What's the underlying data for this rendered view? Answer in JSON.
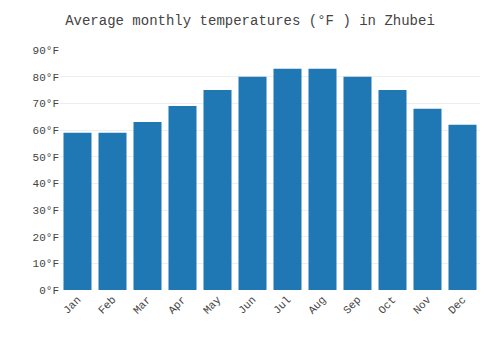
{
  "chart_data": {
    "type": "bar",
    "title": "Average monthly temperatures (°F ) in Zhubei",
    "categories": [
      "Jan",
      "Feb",
      "Mar",
      "Apr",
      "May",
      "Jun",
      "Jul",
      "Aug",
      "Sep",
      "Oct",
      "Nov",
      "Dec"
    ],
    "values": [
      59,
      59,
      63,
      69,
      75,
      80,
      83,
      83,
      80,
      75,
      68,
      62
    ],
    "ylim": [
      0,
      90
    ],
    "yticks": [
      {
        "value": 0,
        "label": "0°F"
      },
      {
        "value": 10,
        "label": "10°F"
      },
      {
        "value": 20,
        "label": "20°F"
      },
      {
        "value": 30,
        "label": "30°F"
      },
      {
        "value": 40,
        "label": "40°F"
      },
      {
        "value": 50,
        "label": "50°F"
      },
      {
        "value": 60,
        "label": "60°F"
      },
      {
        "value": 70,
        "label": "70°F"
      },
      {
        "value": 80,
        "label": "80°F"
      },
      {
        "value": 90,
        "label": "90°F"
      }
    ],
    "grid": true
  }
}
